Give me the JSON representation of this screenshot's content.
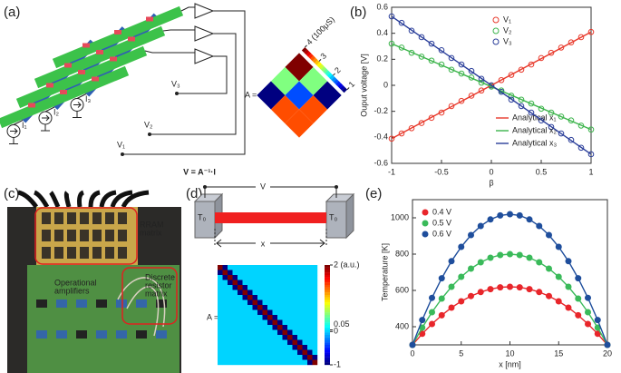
{
  "panel_labels": [
    "(a)",
    "(b)",
    "(c)",
    "(d)",
    "(e)"
  ],
  "circuit": {
    "currents": [
      "I₁",
      "I₂",
      "I₃"
    ],
    "voltages": [
      "V₁",
      "V₂",
      "V₃"
    ],
    "equation": "V = A⁻¹·I",
    "matrix_label": "A =",
    "matrix": {
      "values": [
        [
          4,
          2.5,
          1
        ],
        [
          2.5,
          1.6,
          3.4
        ],
        [
          1,
          3.4,
          3.4
        ]
      ],
      "range": [
        1,
        4
      ],
      "ticks": [
        {
          "value": 4,
          "label": "4 (100μS)"
        },
        3,
        2,
        1
      ]
    }
  },
  "photo": {
    "rram": [
      "RRAM",
      "matrix"
    ],
    "opamp": [
      "Operational",
      "amplifiers"
    ],
    "resistor": [
      "Discrete",
      "resistor",
      "matrix"
    ]
  },
  "heat_model": {
    "voltage": "V",
    "temperature": [
      "T₀",
      "T₀"
    ],
    "length": "x",
    "matrix_label": "A =",
    "matrix": {
      "range": [
        -1,
        2
      ],
      "ticks": [
        {
          "value": 2,
          "label": "2 (a.u.)"
        },
        0.05,
        0,
        -1
      ],
      "values": [
        [
          2,
          -1,
          0,
          0,
          0,
          0,
          0,
          0,
          0,
          0,
          0,
          0,
          0,
          0,
          0,
          0,
          0,
          0,
          0,
          0
        ],
        [
          -1,
          2,
          -1,
          0,
          0,
          0,
          0,
          0,
          0,
          0,
          0,
          0,
          0,
          0,
          0,
          0,
          0,
          0,
          0,
          0
        ],
        [
          0,
          -1,
          2,
          -1,
          0,
          0,
          0,
          0,
          0,
          0,
          0,
          0,
          0,
          0,
          0,
          0,
          0,
          0,
          0,
          0
        ],
        [
          0,
          0,
          -1,
          2,
          -1,
          0,
          0,
          0,
          0,
          0,
          0,
          0,
          0,
          0,
          0,
          0,
          0,
          0,
          0,
          0
        ],
        [
          0,
          0,
          0,
          -1,
          2,
          -1,
          0,
          0,
          0,
          0,
          0,
          0,
          0,
          0,
          0,
          0,
          0,
          0,
          0,
          0
        ],
        [
          0,
          0,
          0,
          0,
          -1,
          2,
          -1,
          0,
          0,
          0,
          0,
          0,
          0,
          0,
          0,
          0,
          0,
          0,
          0,
          0
        ],
        [
          0,
          0,
          0,
          0,
          0,
          -1,
          2,
          -1,
          0,
          0,
          0,
          0,
          0,
          0,
          0,
          0,
          0,
          0,
          0,
          0
        ],
        [
          0,
          0,
          0,
          0,
          0,
          0,
          -1,
          2,
          -1,
          0,
          0,
          0,
          0,
          0,
          0,
          0,
          0,
          0,
          0,
          0
        ],
        [
          0,
          0,
          0,
          0,
          0,
          0,
          0,
          -1,
          2,
          -1,
          0,
          0,
          0,
          0,
          0,
          0,
          0,
          0,
          0,
          0
        ],
        [
          0,
          0,
          0,
          0,
          0,
          0,
          0,
          0,
          -1,
          2,
          -1,
          0,
          0,
          0,
          0,
          0,
          0,
          0,
          0,
          0
        ],
        [
          0,
          0,
          0,
          0,
          0,
          0,
          0,
          0,
          0,
          -1,
          2,
          -1,
          0,
          0,
          0,
          0,
          0,
          0,
          0,
          0
        ],
        [
          0,
          0,
          0,
          0,
          0,
          0,
          0,
          0,
          0,
          0,
          -1,
          2,
          -1,
          0,
          0,
          0,
          0,
          0,
          0,
          0
        ],
        [
          0,
          0,
          0,
          0,
          0,
          0,
          0,
          0,
          0,
          0,
          0,
          -1,
          2,
          -1,
          0,
          0,
          0,
          0,
          0,
          0
        ],
        [
          0,
          0,
          0,
          0,
          0,
          0,
          0,
          0,
          0,
          0,
          0,
          0,
          -1,
          2,
          -1,
          0,
          0,
          0,
          0,
          0
        ],
        [
          0,
          0,
          0,
          0,
          0,
          0,
          0,
          0,
          0,
          0,
          0,
          0,
          0,
          -1,
          2,
          -1,
          0,
          0,
          0,
          0
        ],
        [
          0,
          0,
          0,
          0,
          0,
          0,
          0,
          0,
          0,
          0,
          0,
          0,
          0,
          0,
          -1,
          2,
          -1,
          0,
          0,
          0
        ],
        [
          0,
          0,
          0,
          0,
          0,
          0,
          0,
          0,
          0,
          0,
          0,
          0,
          0,
          0,
          0,
          -1,
          2,
          -1,
          0,
          0
        ],
        [
          0,
          0,
          0,
          0,
          0,
          0,
          0,
          0,
          0,
          0,
          0,
          0,
          0,
          0,
          0,
          0,
          -1,
          2,
          -1,
          0
        ],
        [
          0,
          0,
          0,
          0,
          0,
          0,
          0,
          0,
          0,
          0,
          0,
          0,
          0,
          0,
          0,
          0,
          0,
          -1,
          2,
          -1
        ],
        [
          0,
          0,
          0,
          0,
          0,
          0,
          0,
          0,
          0,
          0,
          0,
          0,
          0,
          0,
          0,
          0,
          0,
          0,
          -1,
          2
        ]
      ]
    }
  },
  "chart_data": [
    {
      "type": "line",
      "xlabel": "β",
      "ylabel": "Ouput voltage [V]",
      "xlim": [
        -1,
        1
      ],
      "ylim": [
        -0.6,
        0.6
      ],
      "xticks": [
        -1,
        -0.5,
        0,
        0.5,
        1
      ],
      "yticks": [
        -0.6,
        -0.4,
        -0.2,
        0,
        0.2,
        0.4,
        0.6
      ],
      "legend": "upper center",
      "marker_fill": "none",
      "x": [
        -1,
        -0.9,
        -0.8,
        -0.7,
        -0.6,
        -0.5,
        -0.4,
        -0.3,
        -0.2,
        -0.1,
        0,
        0.1,
        0.2,
        0.3,
        0.4,
        0.5,
        0.6,
        0.7,
        0.8,
        0.9,
        1
      ],
      "series": [
        {
          "name": "V₁",
          "color": "#e8392b",
          "style": "marker",
          "values": [
            -0.41,
            -0.37,
            -0.33,
            -0.29,
            -0.25,
            -0.21,
            -0.16,
            -0.12,
            -0.08,
            -0.04,
            0,
            0.04,
            0.08,
            0.12,
            0.16,
            0.21,
            0.25,
            0.29,
            0.33,
            0.37,
            0.41
          ]
        },
        {
          "name": "V₂",
          "color": "#3cb44b",
          "style": "marker",
          "values": [
            0.32,
            0.29,
            0.25,
            0.22,
            0.19,
            0.16,
            0.12,
            0.09,
            0.06,
            0.02,
            -0.01,
            -0.04,
            -0.08,
            -0.11,
            -0.14,
            -0.18,
            -0.21,
            -0.24,
            -0.27,
            -0.31,
            -0.34
          ]
        },
        {
          "name": "V₃",
          "color": "#2a3e9a",
          "style": "marker",
          "values": [
            0.53,
            0.48,
            0.42,
            0.37,
            0.32,
            0.27,
            0.21,
            0.16,
            0.11,
            0.05,
            0,
            -0.05,
            -0.11,
            -0.16,
            -0.21,
            -0.27,
            -0.32,
            -0.37,
            -0.42,
            -0.48,
            -0.53
          ]
        },
        {
          "name": "Analytical x₁",
          "color": "#e8392b",
          "style": "line",
          "x": [
            -1,
            1
          ],
          "values": [
            -0.41,
            0.41
          ]
        },
        {
          "name": "Analytical x₂",
          "color": "#3cb44b",
          "style": "line",
          "x": [
            -1,
            1
          ],
          "values": [
            0.32,
            -0.34
          ]
        },
        {
          "name": "Analytical x₃",
          "color": "#2a3e9a",
          "style": "line",
          "x": [
            -1,
            1
          ],
          "values": [
            0.53,
            -0.53
          ]
        }
      ]
    },
    {
      "type": "line",
      "xlabel": "x [nm]",
      "ylabel": "Temperature [K]",
      "xlim": [
        0,
        20
      ],
      "ylim": [
        300,
        1100
      ],
      "xticks": [
        0,
        5,
        10,
        15,
        20
      ],
      "yticks": [
        400,
        600,
        800,
        1000
      ],
      "legend": "upper left",
      "marker_fill": "solid",
      "x": [
        0,
        1,
        2,
        3,
        4,
        5,
        6,
        7,
        8,
        9,
        10,
        11,
        12,
        13,
        14,
        15,
        16,
        17,
        18,
        19,
        20
      ],
      "series": [
        {
          "name": "0.4 V",
          "color": "#e8262b",
          "style": "both",
          "values": [
            300,
            361,
            415,
            463,
            505,
            540,
            569,
            591,
            607,
            617,
            620,
            617,
            607,
            591,
            569,
            540,
            505,
            463,
            415,
            361,
            300
          ]
        },
        {
          "name": "0.5 V",
          "color": "#3aba5a",
          "style": "both",
          "values": [
            300,
            395,
            480,
            555,
            620,
            675,
            720,
            755,
            780,
            795,
            800,
            795,
            780,
            755,
            720,
            675,
            620,
            555,
            480,
            395,
            300
          ]
        },
        {
          "name": "0.6 V",
          "color": "#1f4e9c",
          "style": "both",
          "values": [
            300,
            437,
            559,
            667,
            761,
            840,
            905,
            955,
            991,
            1013,
            1020,
            1013,
            991,
            955,
            905,
            840,
            761,
            667,
            559,
            437,
            300
          ]
        }
      ]
    }
  ]
}
